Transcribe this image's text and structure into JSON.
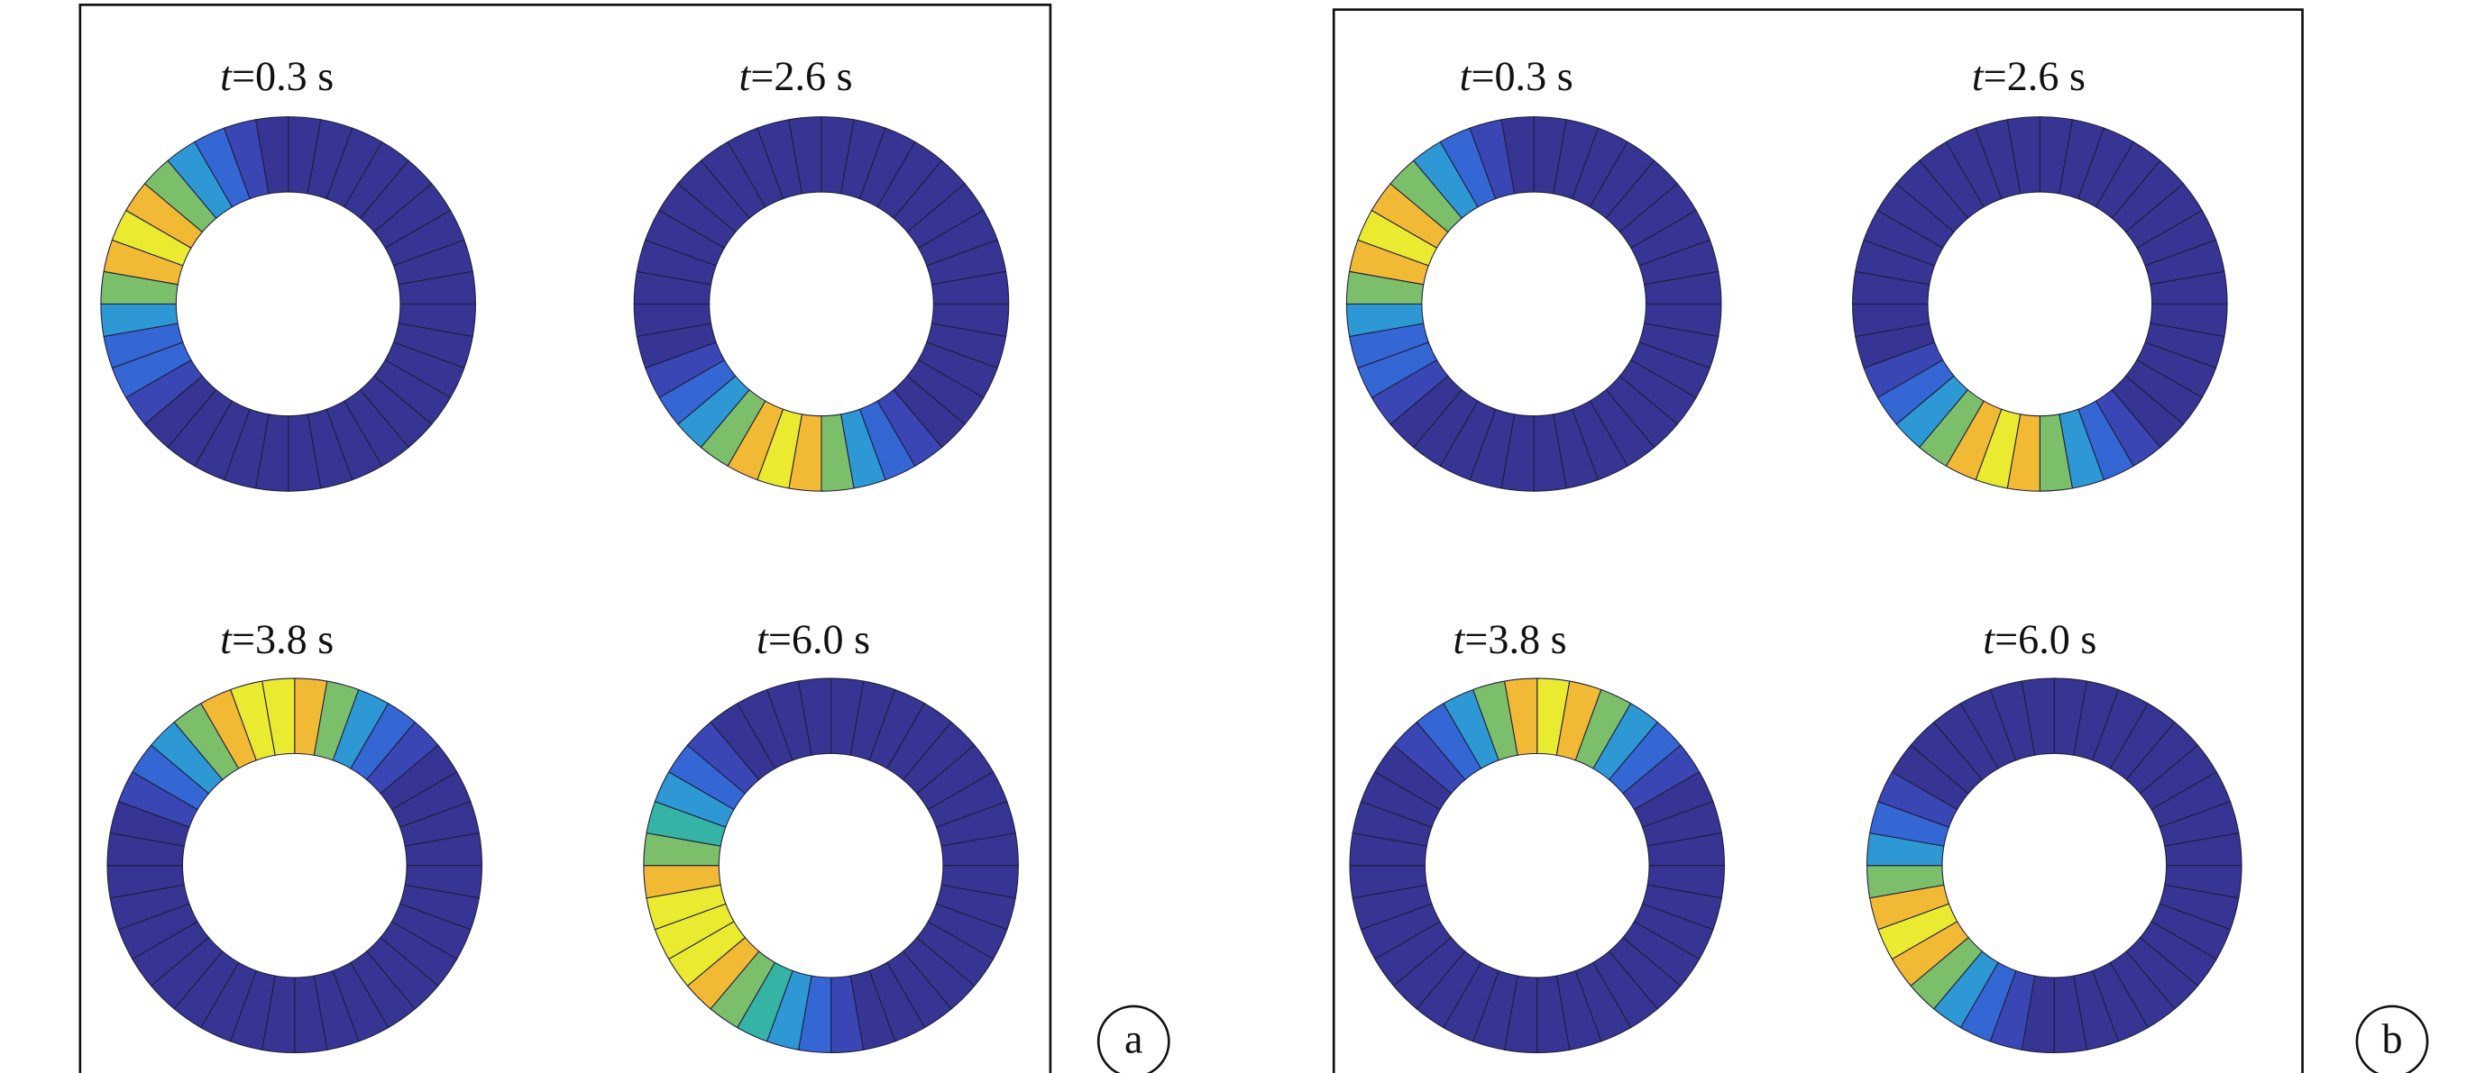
{
  "panels": [
    {
      "label": "a",
      "plots": [
        {
          "title": "t=0.3 s",
          "segments": [
            "#363593",
            "#363593",
            "#363593",
            "#363593",
            "#363593",
            "#363593",
            "#363593",
            "#363593",
            "#363593",
            "#363593",
            "#363593",
            "#363593",
            "#363593",
            "#363593",
            "#363593",
            "#363593",
            "#363593",
            "#363593",
            "#363593",
            "#363593",
            "#363593",
            "#363593",
            "#363593",
            "#3a46b4",
            "#3466d4",
            "#3466d4",
            "#2e98d4",
            "#7cbf6b",
            "#f2b935",
            "#eaea30",
            "#f2b935",
            "#7cbf6b",
            "#2e98d4",
            "#3466d4",
            "#3a46b4",
            "#363593"
          ]
        },
        {
          "title": "t=2.6 s",
          "segments": [
            "#363593",
            "#363593",
            "#363593",
            "#363593",
            "#363593",
            "#363593",
            "#363593",
            "#363593",
            "#363593",
            "#363593",
            "#363593",
            "#363593",
            "#363593",
            "#363593",
            "#3a46b4",
            "#3466d4",
            "#2e98d4",
            "#7cbf6b",
            "#f2b935",
            "#eaea30",
            "#f2b935",
            "#7cbf6b",
            "#2e98d4",
            "#3466d4",
            "#3a46b4",
            "#363593",
            "#363593",
            "#363593",
            "#363593",
            "#363593",
            "#363593",
            "#363593",
            "#363593",
            "#363593",
            "#363593",
            "#363593"
          ]
        },
        {
          "title": "t=3.8 s",
          "segments": [
            "#f2b935",
            "#7cbf6b",
            "#2e98d4",
            "#3466d4",
            "#3a46b4",
            "#363593",
            "#363593",
            "#363593",
            "#363593",
            "#363593",
            "#363593",
            "#363593",
            "#363593",
            "#363593",
            "#363593",
            "#363593",
            "#363593",
            "#363593",
            "#363593",
            "#363593",
            "#363593",
            "#363593",
            "#363593",
            "#363593",
            "#363593",
            "#363593",
            "#363593",
            "#363593",
            "#363593",
            "#3a46b4",
            "#3466d4",
            "#2e98d4",
            "#7cbf6b",
            "#f2b935",
            "#eaea30",
            "#eaea30"
          ]
        },
        {
          "title": "t=6.0 s",
          "segments": [
            "#363593",
            "#363593",
            "#363593",
            "#363593",
            "#363593",
            "#363593",
            "#363593",
            "#363593",
            "#363593",
            "#363593",
            "#363593",
            "#363593",
            "#363593",
            "#363593",
            "#363593",
            "#363593",
            "#363593",
            "#3a46b4",
            "#3466d4",
            "#2e98d4",
            "#35b3a4",
            "#7cbf6b",
            "#f2b935",
            "#eaea30",
            "#eaea30",
            "#eaea30",
            "#f2b935",
            "#7cbf6b",
            "#35b3a4",
            "#2e98d4",
            "#3466d4",
            "#3a46b4",
            "#363593",
            "#363593",
            "#363593",
            "#363593"
          ]
        }
      ]
    },
    {
      "label": "b",
      "plots": [
        {
          "title": "t=0.3 s",
          "segments": [
            "#363593",
            "#363593",
            "#363593",
            "#363593",
            "#363593",
            "#363593",
            "#363593",
            "#363593",
            "#363593",
            "#363593",
            "#363593",
            "#363593",
            "#363593",
            "#363593",
            "#363593",
            "#363593",
            "#363593",
            "#363593",
            "#363593",
            "#363593",
            "#363593",
            "#363593",
            "#363593",
            "#3a46b4",
            "#3466d4",
            "#3466d4",
            "#2e98d4",
            "#7cbf6b",
            "#f2b935",
            "#eaea30",
            "#f2b935",
            "#7cbf6b",
            "#2e98d4",
            "#3466d4",
            "#3a46b4",
            "#363593"
          ]
        },
        {
          "title": "t=2.6 s",
          "segments": [
            "#363593",
            "#363593",
            "#363593",
            "#363593",
            "#363593",
            "#363593",
            "#363593",
            "#363593",
            "#363593",
            "#363593",
            "#363593",
            "#363593",
            "#363593",
            "#363593",
            "#3a46b4",
            "#3466d4",
            "#2e98d4",
            "#7cbf6b",
            "#f2b935",
            "#eaea30",
            "#f2b935",
            "#7cbf6b",
            "#2e98d4",
            "#3466d4",
            "#3a46b4",
            "#363593",
            "#363593",
            "#363593",
            "#363593",
            "#363593",
            "#363593",
            "#363593",
            "#363593",
            "#363593",
            "#363593",
            "#363593"
          ]
        },
        {
          "title": "t=3.8 s",
          "segments": [
            "#eaea30",
            "#f2b935",
            "#7cbf6b",
            "#2e98d4",
            "#3466d4",
            "#3a46b4",
            "#363593",
            "#363593",
            "#363593",
            "#363593",
            "#363593",
            "#363593",
            "#363593",
            "#363593",
            "#363593",
            "#363593",
            "#363593",
            "#363593",
            "#363593",
            "#363593",
            "#363593",
            "#363593",
            "#363593",
            "#363593",
            "#363593",
            "#363593",
            "#363593",
            "#363593",
            "#363593",
            "#363593",
            "#363593",
            "#3a46b4",
            "#3466d4",
            "#2e98d4",
            "#7cbf6b",
            "#f2b935"
          ]
        },
        {
          "title": "t=6.0 s",
          "segments": [
            "#363593",
            "#363593",
            "#363593",
            "#363593",
            "#363593",
            "#363593",
            "#363593",
            "#363593",
            "#363593",
            "#363593",
            "#363593",
            "#363593",
            "#363593",
            "#363593",
            "#363593",
            "#363593",
            "#363593",
            "#363593",
            "#363593",
            "#3a46b4",
            "#3466d4",
            "#2e98d4",
            "#7cbf6b",
            "#f2b935",
            "#eaea30",
            "#f2b935",
            "#7cbf6b",
            "#2e98d4",
            "#3466d4",
            "#3a46b4",
            "#363593",
            "#363593",
            "#363593",
            "#363593",
            "#363593",
            "#363593"
          ]
        }
      ]
    }
  ]
}
